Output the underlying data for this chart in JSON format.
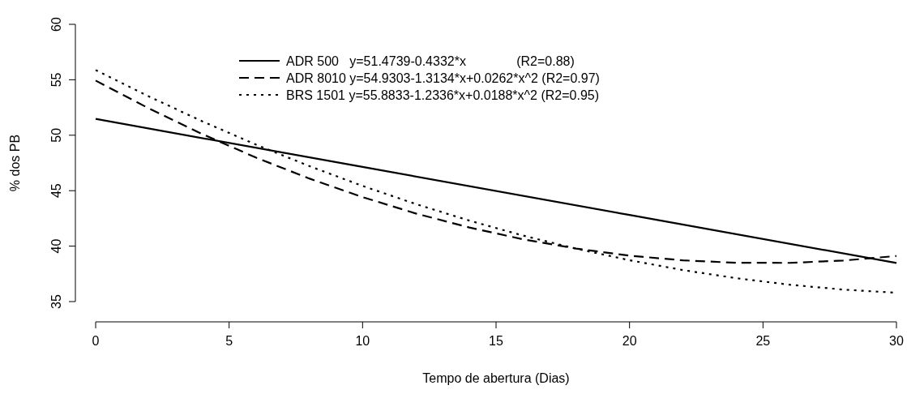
{
  "chart_data": {
    "type": "line",
    "xlabel": "Tempo de abertura (Dias)",
    "ylabel": "% dos PB",
    "xlim": [
      0,
      30
    ],
    "ylim": [
      35,
      60
    ],
    "xticks": [
      0,
      5,
      10,
      15,
      20,
      25,
      30
    ],
    "yticks": [
      35,
      40,
      45,
      50,
      55,
      60
    ],
    "grid": false,
    "legend": "top",
    "marker": "none",
    "series": [
      {
        "name": "ADR 500   y=51.4739-0.4332*x              (R2=0.88)",
        "color": "#000000",
        "line_style": "solid",
        "x": [
          0,
          10,
          20,
          30
        ],
        "values": [
          51.47,
          47.14,
          42.81,
          38.48
        ]
      },
      {
        "name": "ADR 8010 y=54.9303-1.3134*x+0.0262*x^2 (R2=0.97)",
        "color": "#000000",
        "line_style": "dashed",
        "x": [
          0,
          2,
          4,
          6,
          8,
          10,
          12,
          14,
          16,
          18,
          20,
          22,
          24,
          26,
          28,
          30
        ],
        "values": [
          54.93,
          52.41,
          50.1,
          47.99,
          46.1,
          44.42,
          42.94,
          41.68,
          40.62,
          39.78,
          39.14,
          38.72,
          38.5,
          38.49,
          38.7,
          39.11
        ]
      },
      {
        "name": "BRS 1501 y=55.8833-1.2336*x+0.0188*x^2 (R2=0.95)",
        "color": "#000000",
        "line_style": "dotted",
        "x": [
          0,
          2,
          4,
          6,
          8,
          10,
          12,
          14,
          16,
          18,
          20,
          22,
          24,
          26,
          28,
          30
        ],
        "values": [
          55.88,
          53.49,
          51.25,
          49.16,
          47.22,
          45.43,
          43.79,
          42.3,
          40.96,
          39.77,
          38.73,
          37.84,
          37.11,
          36.52,
          36.08,
          35.8
        ]
      }
    ]
  }
}
